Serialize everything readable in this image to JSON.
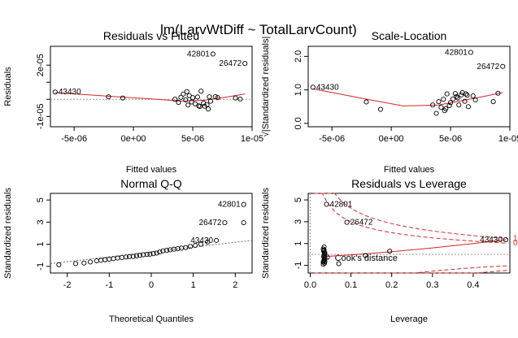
{
  "figure": {
    "main_title": "lm(LarvWtDiff ~ TotalLarvCount)"
  },
  "chart_data": [
    {
      "type": "scatter",
      "title": "Residuals vs Fitted",
      "xlabel": "Fitted values",
      "ylabel": "Residuals",
      "xlim": [
        -7e-06,
        1e-05
      ],
      "ylim": [
        -1.6e-05,
        3.1e-05
      ],
      "xticks": [
        -5e-06,
        0,
        5e-06,
        1e-05
      ],
      "xticklabels": [
        "-5e-06",
        "0e+00",
        "5e-06",
        "1e-05"
      ],
      "yticks": [
        -1e-05,
        0,
        1e-05,
        2e-05
      ],
      "yticklabels": [
        "-1e-05",
        "",
        "",
        "2e-05"
      ],
      "hline": 0,
      "x": [
        -6.6e-06,
        -2.1e-06,
        -9e-07,
        3.5e-06,
        3.8e-06,
        4e-06,
        4.2e-06,
        4.4e-06,
        4.5e-06,
        4.7e-06,
        4.9e-06,
        5e-06,
        5.2e-06,
        5.4e-06,
        5.5e-06,
        5.7e-06,
        5.9e-06,
        6e-06,
        6.2e-06,
        6.4e-06,
        6.5e-06,
        6.7e-06,
        6.9e-06,
        7.1e-06,
        8.6e-06,
        9e-06,
        9.4e-06,
        4.6e-06,
        5.6e-06,
        6.3e-06
      ],
      "y": [
        4.3e-06,
        1.5e-06,
        8e-07,
        1e-07,
        -1.8e-06,
        1.2e-06,
        3.1e-06,
        -3e-07,
        4.5e-06,
        2.2e-06,
        -1.5e-06,
        1e-06,
        -2.6e-06,
        1.4e-06,
        -3.8e-06,
        4.8e-06,
        -2.2e-06,
        -4e-06,
        -3.1e-06,
        1.5e-06,
        -1.1e-06,
        2.65e-05,
        1.6e-06,
        1e-06,
        8e-07,
        2e-07,
        2.1e-05,
        -3.3e-06,
        -4.1e-06,
        -5.6e-06
      ],
      "point_labels": [
        {
          "index": 0,
          "text": "43430"
        },
        {
          "index": 21,
          "text": "42801"
        },
        {
          "index": 26,
          "text": "26472"
        }
      ],
      "smoother": {
        "x": [
          -6.6e-06,
          -2e-06,
          2e-06,
          4e-06,
          6e-06,
          8e-06,
          9.4e-06
        ],
        "y": [
          3.9e-06,
          1.8e-06,
          0.0,
          -1e-06,
          -5e-07,
          1.5e-06,
          3.2e-06
        ]
      }
    },
    {
      "type": "scatter",
      "title": "Scale-Location",
      "xlabel": "Fitted values",
      "ylabel": "√|Standardized residuals|",
      "xlim": [
        -7e-06,
        1e-05
      ],
      "ylim": [
        -0.1,
        2.3
      ],
      "xticks": [
        -5e-06,
        0,
        5e-06,
        1e-05
      ],
      "xticklabels": [
        "-5e-06",
        "0e+00",
        "5e-06",
        "1e-05"
      ],
      "yticks": [
        0.0,
        1.0,
        2.0
      ],
      "yticklabels": [
        "0.0",
        "1.0",
        "2.0"
      ],
      "x": [
        -6.6e-06,
        -2.1e-06,
        -9e-07,
        3.5e-06,
        3.8e-06,
        4e-06,
        4.2e-06,
        4.4e-06,
        4.5e-06,
        4.7e-06,
        4.9e-06,
        5e-06,
        5.2e-06,
        5.4e-06,
        5.5e-06,
        5.7e-06,
        5.9e-06,
        6e-06,
        6.2e-06,
        6.4e-06,
        6.5e-06,
        6.7e-06,
        6.9e-06,
        7.1e-06,
        8.6e-06,
        9e-06,
        9.4e-06,
        4.6e-06,
        5.6e-06,
        6.3e-06
      ],
      "y": [
        1.08,
        0.64,
        0.42,
        0.55,
        0.3,
        0.65,
        0.48,
        0.72,
        0.38,
        0.88,
        0.53,
        0.62,
        0.73,
        0.89,
        0.8,
        0.55,
        0.85,
        0.92,
        0.66,
        0.84,
        0.5,
        2.12,
        0.82,
        0.7,
        0.65,
        0.9,
        1.7,
        0.44,
        0.76,
        0.88
      ],
      "point_labels": [
        {
          "index": 0,
          "text": "43430"
        },
        {
          "index": 21,
          "text": "42801"
        },
        {
          "index": 26,
          "text": "26472"
        }
      ],
      "smoother": {
        "x": [
          -6.6e-06,
          -2e-06,
          1e-06,
          4e-06,
          6e-06,
          8e-06,
          9.4e-06
        ],
        "y": [
          1.03,
          0.72,
          0.52,
          0.55,
          0.68,
          0.82,
          0.92
        ]
      }
    },
    {
      "type": "scatter",
      "title": "Normal Q-Q",
      "xlabel": "Theoretical Quantiles",
      "ylabel": "Standardized residuals",
      "xlim": [
        -2.4,
        2.4
      ],
      "ylim": [
        -1.6,
        5.6
      ],
      "xticks": [
        -2,
        -1,
        0,
        1,
        2
      ],
      "xticklabels": [
        "-2",
        "-1",
        "0",
        "1",
        "2"
      ],
      "yticks": [
        -1,
        1,
        3,
        5
      ],
      "yticklabels": [
        "-1",
        "1",
        "3",
        "5"
      ],
      "x": [
        -2.2,
        -1.8,
        -1.6,
        -1.45,
        -1.3,
        -1.2,
        -1.1,
        -1.0,
        -0.9,
        -0.8,
        -0.7,
        -0.6,
        -0.52,
        -0.43,
        -0.35,
        -0.27,
        -0.19,
        -0.1,
        -0.03,
        0.05,
        0.13,
        0.2,
        0.28,
        0.37,
        0.45,
        0.54,
        0.63,
        0.72,
        0.82,
        0.93,
        1.05,
        1.18,
        1.34,
        1.55,
        1.75,
        2.2,
        2.2
      ],
      "y": [
        -0.85,
        -0.75,
        -0.7,
        -0.6,
        -0.5,
        -0.45,
        -0.4,
        -0.35,
        -0.3,
        -0.25,
        -0.2,
        -0.15,
        -0.12,
        -0.1,
        -0.05,
        0.0,
        0.05,
        0.08,
        0.1,
        0.15,
        0.2,
        0.3,
        0.4,
        0.45,
        0.5,
        0.55,
        0.6,
        0.65,
        0.7,
        0.8,
        0.9,
        1.0,
        1.2,
        1.35,
        2.95,
        4.6,
        2.95
      ],
      "point_labels": [
        {
          "index": 33,
          "text": "43430"
        },
        {
          "index": 35,
          "text": "42801"
        },
        {
          "index": 34,
          "text": "26472"
        }
      ],
      "reference_line": {
        "x": [
          -2.4,
          2.4
        ],
        "y": [
          -0.75,
          1.35
        ]
      }
    },
    {
      "type": "scatter",
      "title": "Residuals vs Leverage",
      "xlabel": "Leverage",
      "ylabel": "Standardized residuals",
      "xlim": [
        -0.005,
        0.49
      ],
      "ylim": [
        -1.7,
        5.6
      ],
      "xticks": [
        0.0,
        0.1,
        0.2,
        0.3,
        0.4
      ],
      "xticklabels": [
        "0.0",
        "0.1",
        "0.2",
        "0.3",
        "0.4"
      ],
      "yticks": [
        -1,
        1,
        3,
        5
      ],
      "yticklabels": [
        "-1",
        "1",
        "3",
        "5"
      ],
      "legend_text": "Cook's distance",
      "contour_labels": [
        "0",
        "1"
      ],
      "x": [
        0.032,
        0.032,
        0.033,
        0.034,
        0.035,
        0.036,
        0.033,
        0.034,
        0.035,
        0.036,
        0.033,
        0.032,
        0.034,
        0.035,
        0.036,
        0.035,
        0.034,
        0.04,
        0.042,
        0.07,
        0.09,
        0.135,
        0.195,
        0.48
      ],
      "y": [
        -0.9,
        -0.7,
        -0.6,
        -0.5,
        -0.4,
        -0.3,
        -0.2,
        -0.1,
        0.0,
        0.1,
        0.3,
        0.5,
        0.7,
        -0.8,
        -0.65,
        0.2,
        0.4,
        4.6,
        -0.25,
        -0.85,
        2.95,
        -0.1,
        0.3,
        1.35
      ],
      "point_labels": [
        {
          "index": 17,
          "text": "42801"
        },
        {
          "index": 20,
          "text": "26472"
        },
        {
          "index": 23,
          "text": "43430"
        }
      ],
      "smoother": {
        "x": [
          0.03,
          0.1,
          0.2,
          0.3,
          0.4,
          0.48
        ],
        "y": [
          -0.2,
          -0.05,
          0.25,
          0.6,
          1.0,
          1.35
        ]
      }
    }
  ]
}
